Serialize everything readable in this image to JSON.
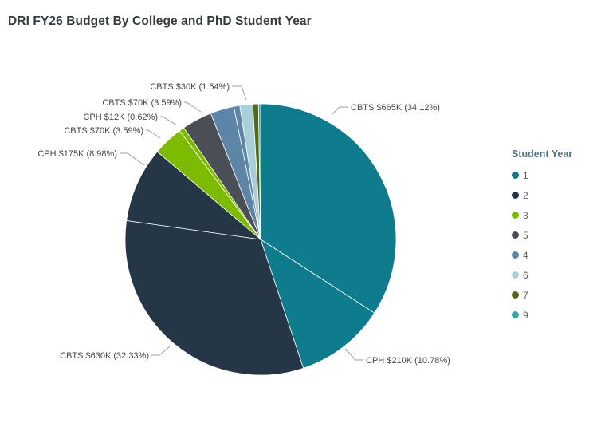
{
  "title": "DRI FY26 Budget By College and PhD Student Year",
  "legend": {
    "title": "Student Year",
    "items": [
      {
        "label": "1",
        "year": "1"
      },
      {
        "label": "2",
        "year": "2"
      },
      {
        "label": "3",
        "year": "3"
      },
      {
        "label": "5",
        "year": "5"
      },
      {
        "label": "4",
        "year": "4"
      },
      {
        "label": "6",
        "year": "6"
      },
      {
        "label": "7",
        "year": "7"
      },
      {
        "label": "9",
        "year": "9"
      }
    ]
  },
  "chart_data": {
    "type": "pie",
    "title": "DRI FY26 Budget By College and PhD Student Year",
    "legend_title": "Student Year",
    "legend_position": "right",
    "start_angle_deg": 0,
    "direction": "clockwise",
    "colors_by_year": {
      "1": "#0e7c8c",
      "2": "#253746",
      "3": "#7dbb00",
      "5": "#4a4f55",
      "4": "#5c85a8",
      "6": "#a9cfdb",
      "7": "#4f6b16",
      "9": "#36a5b0"
    },
    "slices": [
      {
        "college": "CBTS",
        "student_year": "1",
        "amount": "$665K",
        "value_k": 665,
        "pct": 34.12,
        "label": "CBTS $665K (34.12%)"
      },
      {
        "college": "CPH",
        "student_year": "1",
        "amount": "$210K",
        "value_k": 210,
        "pct": 10.78,
        "label": "CPH $210K (10.78%)"
      },
      {
        "college": "CBTS",
        "student_year": "2",
        "amount": "$630K",
        "value_k": 630,
        "pct": 32.33,
        "label": "CBTS $630K (32.33%)"
      },
      {
        "college": "CPH",
        "student_year": "2",
        "amount": "$175K",
        "value_k": 175,
        "pct": 8.98,
        "label": "CPH $175K (8.98%)"
      },
      {
        "college": "CBTS",
        "student_year": "3",
        "amount": "$70K",
        "value_k": 70,
        "pct": 3.59,
        "label": "CBTS $70K (3.59%)"
      },
      {
        "college": "CPH",
        "student_year": "3",
        "amount": "$12K",
        "value_k": 12,
        "pct": 0.62,
        "label": "CPH $12K (0.62%)"
      },
      {
        "college": "CBTS",
        "student_year": "5",
        "amount": "$70K",
        "value_k": 70,
        "pct": 3.59,
        "label": "CBTS $70K (3.59%)"
      },
      {
        "college": null,
        "student_year": "4",
        "amount": null,
        "value_k": 55,
        "pct": 2.82,
        "label": null,
        "estimated": true
      },
      {
        "college": null,
        "student_year": "4",
        "amount": null,
        "value_k": 14,
        "pct": 0.72,
        "label": null,
        "estimated": true
      },
      {
        "college": "CBTS",
        "student_year": "6",
        "amount": "$30K",
        "value_k": 30,
        "pct": 1.54,
        "label": "CBTS $30K (1.54%)"
      },
      {
        "college": null,
        "student_year": "7",
        "amount": null,
        "value_k": 13,
        "pct": 0.67,
        "label": null,
        "estimated": true
      },
      {
        "college": null,
        "student_year": "9",
        "amount": null,
        "value_k": 5,
        "pct": 0.26,
        "label": null,
        "estimated": true
      }
    ]
  }
}
